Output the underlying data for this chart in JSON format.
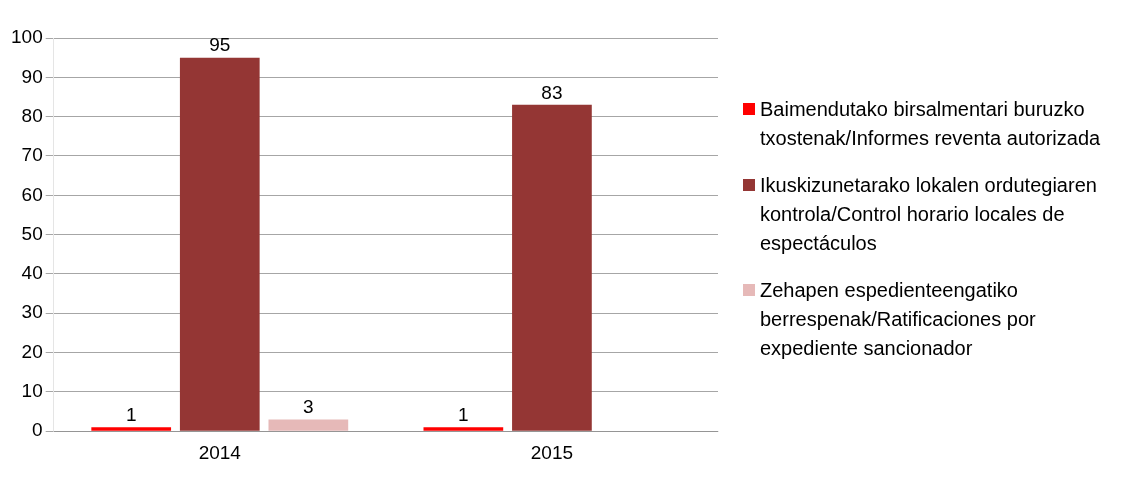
{
  "chart_data": {
    "type": "bar",
    "categories": [
      "2014",
      "2015"
    ],
    "series": [
      {
        "name": "Baimendutako birsalmentari buruzko txostenak/Informes reventa autorizada",
        "color": "#ff0000",
        "values": [
          1,
          1
        ]
      },
      {
        "name": "Ikuskizunetarako lokalen ordutegiaren kontrola/Control horario locales de espectáculos",
        "color": "#943634",
        "values": [
          95,
          83
        ]
      },
      {
        "name": "Zehapen espedienteengatiko berrespenak/Ratificaciones por expediente sancionador",
        "color": "#e6b9b8",
        "values": [
          3,
          null
        ]
      }
    ],
    "ylim": [
      0,
      100
    ],
    "yticks": [
      0,
      10,
      20,
      30,
      40,
      50,
      60,
      70,
      80,
      90,
      100
    ],
    "grid": "y",
    "legend": "right",
    "data_labels": true
  }
}
